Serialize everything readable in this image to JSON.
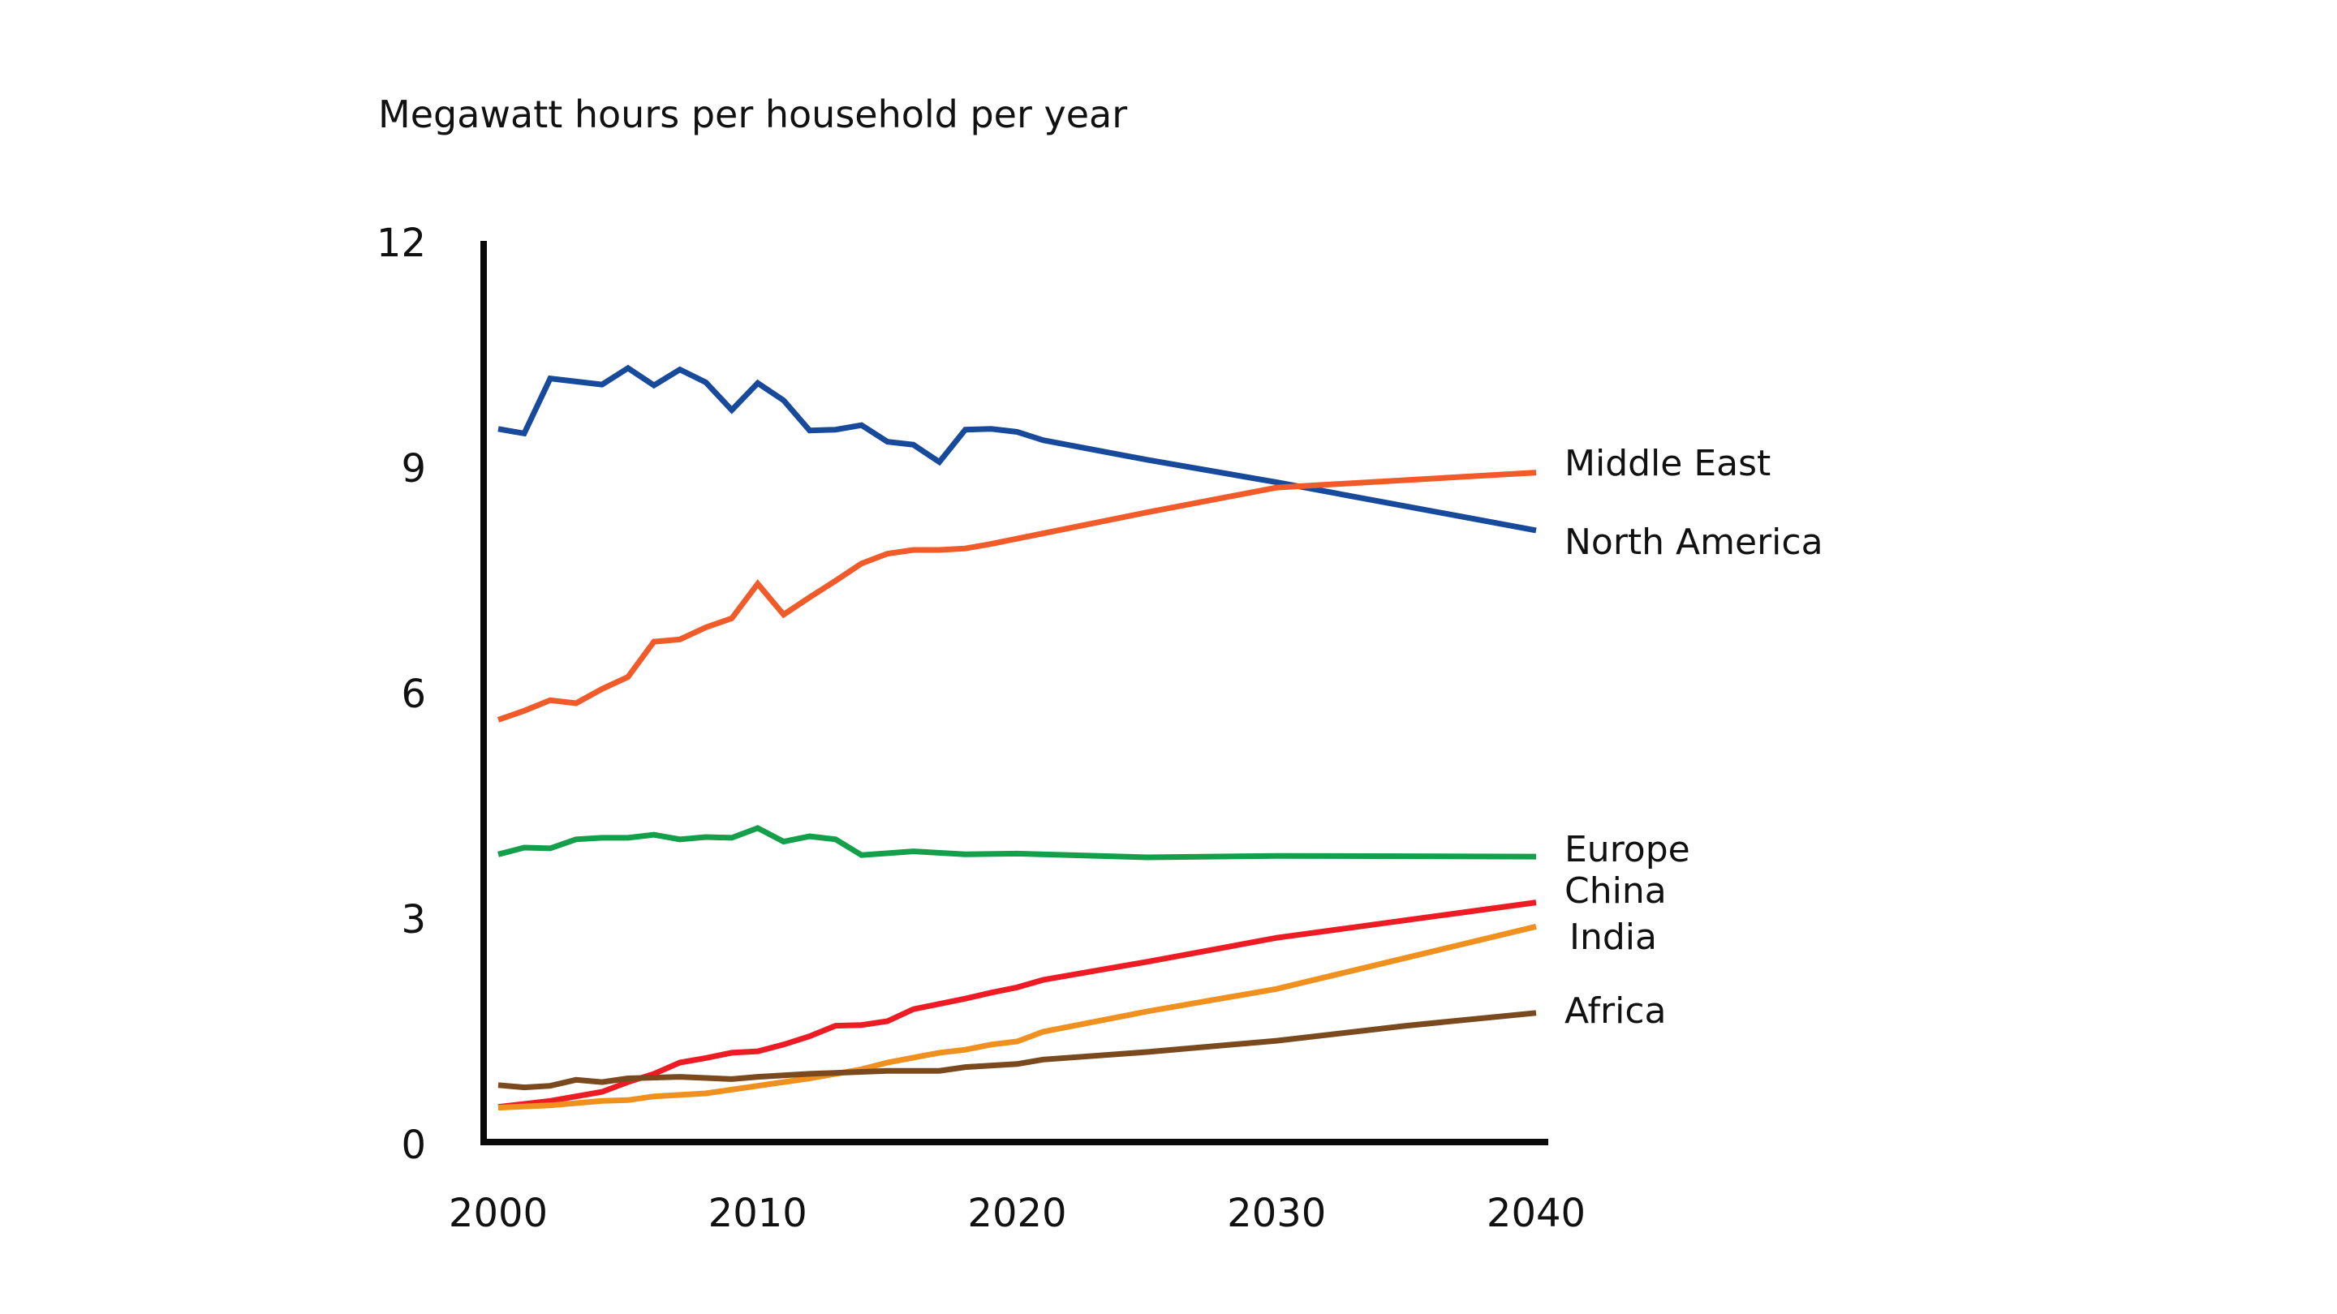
{
  "chart_data": {
    "type": "line",
    "title": "Megawatt hours per household per year",
    "xlabel": "",
    "ylabel": "Megawatt hours per household per year",
    "xlim": [
      2000,
      2040
    ],
    "ylim": [
      0,
      12
    ],
    "x_ticks": [
      "2000",
      "2010",
      "2020",
      "2030",
      "2040"
    ],
    "y_ticks": [
      "0",
      "3",
      "6",
      "9",
      "12"
    ],
    "grid": false,
    "legend": "direct labels at line ends (right)",
    "series": [
      {
        "name": "North America",
        "color": "#184a9c",
        "x": [
          2000,
          2001,
          2002,
          2003,
          2004,
          2005,
          2006,
          2007,
          2008,
          2009,
          2010,
          2011,
          2012,
          2013,
          2014,
          2015,
          2016,
          2017,
          2018,
          2019,
          2020,
          2021,
          2025,
          2030,
          2040
        ],
        "values": [
          9.52,
          9.46,
          10.19,
          10.15,
          10.11,
          10.33,
          10.1,
          10.31,
          10.14,
          9.77,
          10.13,
          9.9,
          9.5,
          9.51,
          9.57,
          9.35,
          9.31,
          9.08,
          9.51,
          9.52,
          9.48,
          9.37,
          9.11,
          8.81,
          8.17
        ]
      },
      {
        "name": "Middle East",
        "color": "#f15a29",
        "x": [
          2000,
          2001,
          2002,
          2003,
          2004,
          2005,
          2006,
          2007,
          2008,
          2009,
          2010,
          2011,
          2012,
          2013,
          2014,
          2015,
          2016,
          2017,
          2018,
          2019,
          2020,
          2025,
          2030,
          2040
        ],
        "values": [
          5.65,
          5.77,
          5.91,
          5.87,
          6.06,
          6.22,
          6.69,
          6.72,
          6.88,
          7.0,
          7.46,
          7.05,
          7.28,
          7.5,
          7.73,
          7.86,
          7.91,
          7.91,
          7.93,
          7.99,
          8.06,
          8.41,
          8.74,
          8.94
        ]
      },
      {
        "name": "Europe",
        "color": "#14a04b",
        "x": [
          2000,
          2001,
          2002,
          2003,
          2004,
          2005,
          2006,
          2007,
          2008,
          2009,
          2010,
          2011,
          2012,
          2013,
          2014,
          2016,
          2018,
          2020,
          2025,
          2030,
          2040
        ],
        "values": [
          3.86,
          3.95,
          3.94,
          4.06,
          4.08,
          4.08,
          4.12,
          4.06,
          4.09,
          4.08,
          4.21,
          4.03,
          4.1,
          4.06,
          3.85,
          3.9,
          3.86,
          3.87,
          3.82,
          3.84,
          3.83
        ]
      },
      {
        "name": "China",
        "color": "#ed1c24",
        "x": [
          2000,
          2002,
          2004,
          2005,
          2006,
          2007,
          2008,
          2009,
          2010,
          2011,
          2012,
          2013,
          2014,
          2015,
          2016,
          2017,
          2018,
          2019,
          2020,
          2021,
          2025,
          2030,
          2040
        ],
        "values": [
          0.5,
          0.58,
          0.7,
          0.83,
          0.94,
          1.09,
          1.15,
          1.22,
          1.24,
          1.33,
          1.44,
          1.58,
          1.59,
          1.64,
          1.8,
          1.87,
          1.94,
          2.02,
          2.09,
          2.19,
          2.43,
          2.75,
          3.22
        ]
      },
      {
        "name": "India",
        "color": "#f0901e",
        "x": [
          2000,
          2002,
          2004,
          2005,
          2006,
          2008,
          2009,
          2010,
          2012,
          2013,
          2014,
          2015,
          2017,
          2018,
          2019,
          2020,
          2021,
          2025,
          2030,
          2040
        ],
        "values": [
          0.49,
          0.52,
          0.58,
          0.59,
          0.64,
          0.68,
          0.73,
          0.78,
          0.88,
          0.94,
          1.0,
          1.09,
          1.22,
          1.26,
          1.33,
          1.37,
          1.5,
          1.77,
          2.07,
          2.9
        ]
      },
      {
        "name": "Africa",
        "color": "#7a4a1e",
        "x": [
          2000,
          2001,
          2002,
          2003,
          2004,
          2005,
          2007,
          2009,
          2010,
          2012,
          2015,
          2017,
          2018,
          2020,
          2021,
          2025,
          2030,
          2035,
          2040
        ],
        "values": [
          0.79,
          0.76,
          0.78,
          0.86,
          0.83,
          0.88,
          0.9,
          0.87,
          0.9,
          0.94,
          0.98,
          0.98,
          1.03,
          1.07,
          1.13,
          1.23,
          1.38,
          1.58,
          1.75
        ]
      }
    ],
    "labels": [
      {
        "series": "Middle East",
        "text": "Middle East"
      },
      {
        "series": "North America",
        "text": "North America"
      },
      {
        "series": "Europe",
        "text": "Europe"
      },
      {
        "series": "China",
        "text": "China"
      },
      {
        "series": "India",
        "text": "India"
      },
      {
        "series": "Africa",
        "text": "Africa"
      }
    ]
  }
}
